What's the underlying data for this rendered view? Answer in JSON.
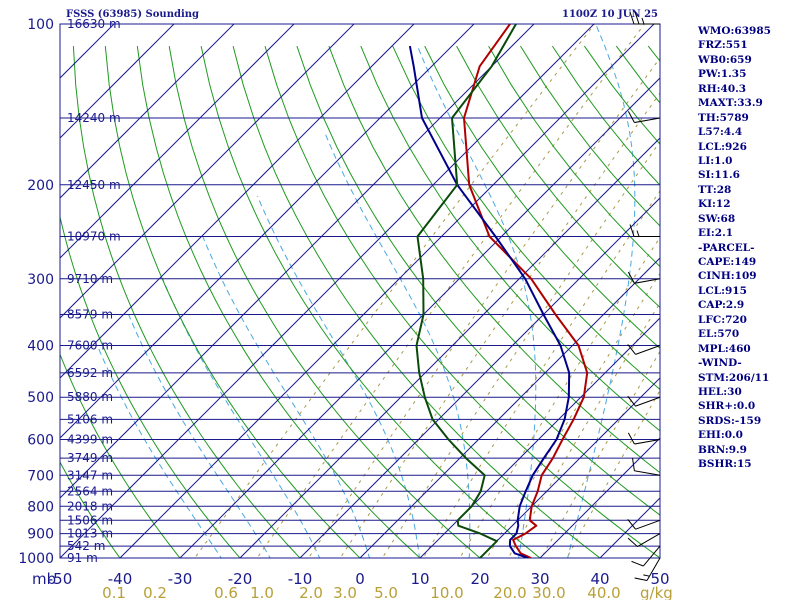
{
  "header": {
    "title": "FSSS (63985) Sounding",
    "time": "1100Z 10 JUN 25"
  },
  "stats": [
    "WMO:63985",
    "FRZ:551",
    "WB0:659",
    "PW:1.35",
    "RH:40.3",
    "MAXT:33.9",
    "TH:5789",
    "L57:4.4",
    "LCL:926",
    "LI:1.0",
    "SI:11.6",
    "TT:28",
    "KI:12",
    "SW:68",
    "EI:2.1",
    "-PARCEL-",
    "CAPE:149",
    "CINH:109",
    "LCL:915",
    "CAP:2.9",
    "LFC:720",
    "EL:570",
    "MPL:460",
    "-WIND-",
    "STM:206/11",
    "HEL:30",
    "SHR+:0.0",
    "SRDS:-159",
    "EHI:0.0",
    "BRN:9.9",
    "BSHR:15"
  ],
  "chart_data": {
    "type": "line",
    "title": "FSSS (63985) Sounding",
    "subtitle": "1100Z 10 JUN 25",
    "xlabel": "",
    "ylabel": "mb",
    "y_scale": "log",
    "ylim": [
      1000,
      100
    ],
    "xlim": [
      -50,
      50
    ],
    "grid": true,
    "pressure_ticks": [
      100,
      200,
      300,
      400,
      500,
      600,
      700,
      800,
      900,
      1000
    ],
    "temperature_ticks": [
      "-50",
      "-40",
      "-30",
      "-20",
      "-10",
      "0",
      "10",
      "20",
      "30",
      "40",
      "50"
    ],
    "axis_unit_label": "mb",
    "mixing_ratio_label_values": [
      "0.1",
      "0.2",
      "0.6",
      "1.0",
      "2.0",
      "3.0",
      "5.0",
      "10.0",
      "20.0",
      "30.0",
      "40.0"
    ],
    "mixing_ratio_unit": "g/kg",
    "height_labels": [
      {
        "p": 100,
        "label": "16630 m"
      },
      {
        "p": 150,
        "label": "14240 m"
      },
      {
        "p": 200,
        "label": "12450 m"
      },
      {
        "p": 250,
        "label": "10970 m"
      },
      {
        "p": 300,
        "label": "9710 m"
      },
      {
        "p": 350,
        "label": "8579 m"
      },
      {
        "p": 400,
        "label": "7600 m"
      },
      {
        "p": 450,
        "label": "6592 m"
      },
      {
        "p": 500,
        "label": "5880 m"
      },
      {
        "p": 550,
        "label": "5106 m"
      },
      {
        "p": 600,
        "label": "4399 m"
      },
      {
        "p": 650,
        "label": "3749 m"
      },
      {
        "p": 700,
        "label": "3147 m"
      },
      {
        "p": 750,
        "label": "2564 m"
      },
      {
        "p": 800,
        "label": "2018 m"
      },
      {
        "p": 850,
        "label": "1506 m"
      },
      {
        "p": 900,
        "label": "1013 m"
      },
      {
        "p": 950,
        "label": "542 m"
      },
      {
        "p": 1000,
        "label": "91 m"
      }
    ],
    "series": [
      {
        "key": "temperature",
        "color": "#b00000",
        "points": [
          [
            1000,
            28.5
          ],
          [
            980,
            26
          ],
          [
            950,
            24
          ],
          [
            925,
            22.5
          ],
          [
            900,
            23.5
          ],
          [
            870,
            24
          ],
          [
            850,
            22
          ],
          [
            800,
            20
          ],
          [
            750,
            18.5
          ],
          [
            700,
            16.5
          ],
          [
            650,
            15.5
          ],
          [
            600,
            14
          ],
          [
            550,
            12.5
          ],
          [
            500,
            10.5
          ],
          [
            450,
            7
          ],
          [
            400,
            1
          ],
          [
            350,
            -8
          ],
          [
            300,
            -18
          ],
          [
            250,
            -32
          ],
          [
            200,
            -44
          ],
          [
            150,
            -56
          ],
          [
            120,
            -62
          ],
          [
            100,
            -64
          ]
        ]
      },
      {
        "key": "dewpoint",
        "color": "#00008b",
        "points": [
          [
            1000,
            28
          ],
          [
            980,
            25
          ],
          [
            950,
            23
          ],
          [
            925,
            22
          ],
          [
            900,
            22
          ],
          [
            870,
            21
          ],
          [
            850,
            20
          ],
          [
            800,
            18
          ],
          [
            750,
            16.5
          ],
          [
            700,
            15
          ],
          [
            650,
            14
          ],
          [
            600,
            13
          ],
          [
            550,
            11
          ],
          [
            500,
            8
          ],
          [
            450,
            4
          ],
          [
            400,
            -2
          ],
          [
            350,
            -10
          ],
          [
            300,
            -19
          ],
          [
            250,
            -31
          ],
          [
            200,
            -46
          ],
          [
            150,
            -63
          ],
          [
            120,
            -73
          ],
          [
            110,
            -77
          ]
        ]
      },
      {
        "key": "wetbulb",
        "color": "#0a4a0a",
        "points": [
          [
            1000,
            20
          ],
          [
            980,
            20
          ],
          [
            950,
            20
          ],
          [
            930,
            20
          ],
          [
            900,
            16
          ],
          [
            870,
            11
          ],
          [
            850,
            10
          ],
          [
            800,
            10
          ],
          [
            750,
            9
          ],
          [
            700,
            7
          ],
          [
            650,
            1
          ],
          [
            600,
            -5
          ],
          [
            550,
            -11
          ],
          [
            500,
            -16
          ],
          [
            450,
            -21
          ],
          [
            400,
            -26
          ],
          [
            350,
            -30
          ],
          [
            300,
            -36
          ],
          [
            250,
            -44
          ],
          [
            200,
            -46
          ],
          [
            150,
            -58
          ],
          [
            120,
            -60
          ],
          [
            100,
            -63
          ]
        ]
      }
    ],
    "wind_barbs": [
      {
        "p": 1000,
        "dir": 210,
        "kt": 15
      },
      {
        "p": 950,
        "dir": 220,
        "kt": 10
      },
      {
        "p": 900,
        "dir": 240,
        "kt": 10
      },
      {
        "p": 850,
        "dir": 250,
        "kt": 10
      },
      {
        "p": 700,
        "dir": 280,
        "kt": 10
      },
      {
        "p": 600,
        "dir": 260,
        "kt": 10
      },
      {
        "p": 500,
        "dir": 250,
        "kt": 10
      },
      {
        "p": 400,
        "dir": 250,
        "kt": 10
      },
      {
        "p": 300,
        "dir": 260,
        "kt": 10
      },
      {
        "p": 250,
        "dir": 270,
        "kt": 15
      },
      {
        "p": 150,
        "dir": 260,
        "kt": 10
      },
      {
        "p": 100,
        "dir": 270,
        "kt": 25
      }
    ],
    "colors": {
      "frame": "#1a1a8c",
      "isobar": "#1a1a8c",
      "isotherm": "#1a1a8c",
      "dry_adiabat": "#1f9a1f",
      "moist_adiabat": "#4aa8e0",
      "mixing_ratio": "#a89a4a"
    }
  }
}
